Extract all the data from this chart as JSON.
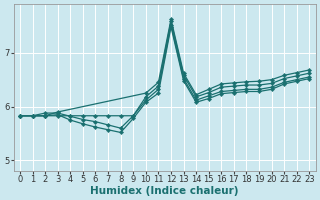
{
  "xlabel": "Humidex (Indice chaleur)",
  "xlim": [
    -0.5,
    23.5
  ],
  "ylim": [
    4.8,
    7.9
  ],
  "yticks": [
    5,
    6,
    7
  ],
  "xticks": [
    0,
    1,
    2,
    3,
    4,
    5,
    6,
    7,
    8,
    9,
    10,
    11,
    12,
    13,
    14,
    15,
    16,
    17,
    18,
    19,
    20,
    21,
    22,
    23
  ],
  "background_color": "#cce8ef",
  "grid_color": "#ffffff",
  "line_color": "#1a7070",
  "lines": [
    {
      "x": [
        0,
        1,
        2,
        3,
        10,
        11,
        12,
        13,
        14,
        15,
        16,
        17,
        18,
        19,
        20,
        21,
        22,
        23
      ],
      "y": [
        5.83,
        5.83,
        5.83,
        5.9,
        6.25,
        6.45,
        7.62,
        6.62,
        6.22,
        6.32,
        6.42,
        6.44,
        6.46,
        6.47,
        6.5,
        6.58,
        6.63,
        6.68
      ]
    },
    {
      "x": [
        0,
        1,
        2,
        3,
        4,
        5,
        6,
        7,
        8,
        9,
        10,
        11,
        12,
        13,
        14,
        15,
        16,
        17,
        18,
        19,
        20,
        21,
        22,
        23
      ],
      "y": [
        5.83,
        5.83,
        5.88,
        5.88,
        5.82,
        5.76,
        5.72,
        5.66,
        5.6,
        5.83,
        6.18,
        6.38,
        7.58,
        6.58,
        6.18,
        6.26,
        6.36,
        6.38,
        6.4,
        6.4,
        6.43,
        6.52,
        6.57,
        6.62
      ]
    },
    {
      "x": [
        0,
        1,
        2,
        3,
        4,
        5,
        6,
        7,
        8,
        9,
        10,
        11,
        12,
        13,
        14,
        15,
        16,
        17,
        18,
        19,
        20,
        21,
        22,
        23
      ],
      "y": [
        5.83,
        5.83,
        5.83,
        5.83,
        5.83,
        5.83,
        5.83,
        5.83,
        5.83,
        5.83,
        6.12,
        6.32,
        7.52,
        6.52,
        6.12,
        6.2,
        6.28,
        6.3,
        6.32,
        6.32,
        6.36,
        6.45,
        6.5,
        6.55
      ]
    },
    {
      "x": [
        0,
        1,
        2,
        3,
        4,
        5,
        6,
        7,
        8,
        9,
        10,
        11,
        12,
        13,
        14,
        15,
        16,
        17,
        18,
        19,
        20,
        21,
        22,
        23
      ],
      "y": [
        5.83,
        5.83,
        5.83,
        5.85,
        5.75,
        5.68,
        5.62,
        5.57,
        5.52,
        5.78,
        6.08,
        6.25,
        7.48,
        6.48,
        6.08,
        6.15,
        6.24,
        6.26,
        6.28,
        6.28,
        6.32,
        6.42,
        6.47,
        6.52
      ]
    }
  ],
  "marker": "D",
  "marker_size": 2.2,
  "linewidth": 0.9,
  "tick_fontsize": 6.0,
  "xlabel_fontsize": 7.5
}
